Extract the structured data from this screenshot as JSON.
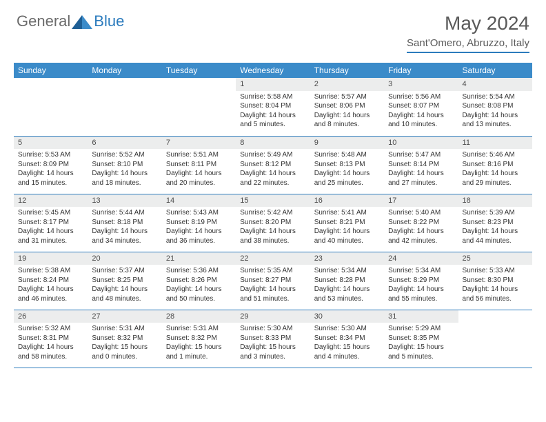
{
  "brand": {
    "part1": "General",
    "part2": "Blue"
  },
  "title": "May 2024",
  "location": "Sant'Omero, Abruzzo, Italy",
  "colors": {
    "header_bg": "#3b8bc9",
    "header_text": "#ffffff",
    "daynum_bg": "#eceded",
    "row_border": "#2b7bbd",
    "logo_gray": "#6b6b6b",
    "logo_blue": "#2b7bbd",
    "title_color": "#5a5a5a"
  },
  "weekdays": [
    "Sunday",
    "Monday",
    "Tuesday",
    "Wednesday",
    "Thursday",
    "Friday",
    "Saturday"
  ],
  "weeks": [
    [
      {
        "n": "",
        "sr": "",
        "ss": "",
        "dl": ""
      },
      {
        "n": "",
        "sr": "",
        "ss": "",
        "dl": ""
      },
      {
        "n": "",
        "sr": "",
        "ss": "",
        "dl": ""
      },
      {
        "n": "1",
        "sr": "Sunrise: 5:58 AM",
        "ss": "Sunset: 8:04 PM",
        "dl": "Daylight: 14 hours and 5 minutes."
      },
      {
        "n": "2",
        "sr": "Sunrise: 5:57 AM",
        "ss": "Sunset: 8:06 PM",
        "dl": "Daylight: 14 hours and 8 minutes."
      },
      {
        "n": "3",
        "sr": "Sunrise: 5:56 AM",
        "ss": "Sunset: 8:07 PM",
        "dl": "Daylight: 14 hours and 10 minutes."
      },
      {
        "n": "4",
        "sr": "Sunrise: 5:54 AM",
        "ss": "Sunset: 8:08 PM",
        "dl": "Daylight: 14 hours and 13 minutes."
      }
    ],
    [
      {
        "n": "5",
        "sr": "Sunrise: 5:53 AM",
        "ss": "Sunset: 8:09 PM",
        "dl": "Daylight: 14 hours and 15 minutes."
      },
      {
        "n": "6",
        "sr": "Sunrise: 5:52 AM",
        "ss": "Sunset: 8:10 PM",
        "dl": "Daylight: 14 hours and 18 minutes."
      },
      {
        "n": "7",
        "sr": "Sunrise: 5:51 AM",
        "ss": "Sunset: 8:11 PM",
        "dl": "Daylight: 14 hours and 20 minutes."
      },
      {
        "n": "8",
        "sr": "Sunrise: 5:49 AM",
        "ss": "Sunset: 8:12 PM",
        "dl": "Daylight: 14 hours and 22 minutes."
      },
      {
        "n": "9",
        "sr": "Sunrise: 5:48 AM",
        "ss": "Sunset: 8:13 PM",
        "dl": "Daylight: 14 hours and 25 minutes."
      },
      {
        "n": "10",
        "sr": "Sunrise: 5:47 AM",
        "ss": "Sunset: 8:14 PM",
        "dl": "Daylight: 14 hours and 27 minutes."
      },
      {
        "n": "11",
        "sr": "Sunrise: 5:46 AM",
        "ss": "Sunset: 8:16 PM",
        "dl": "Daylight: 14 hours and 29 minutes."
      }
    ],
    [
      {
        "n": "12",
        "sr": "Sunrise: 5:45 AM",
        "ss": "Sunset: 8:17 PM",
        "dl": "Daylight: 14 hours and 31 minutes."
      },
      {
        "n": "13",
        "sr": "Sunrise: 5:44 AM",
        "ss": "Sunset: 8:18 PM",
        "dl": "Daylight: 14 hours and 34 minutes."
      },
      {
        "n": "14",
        "sr": "Sunrise: 5:43 AM",
        "ss": "Sunset: 8:19 PM",
        "dl": "Daylight: 14 hours and 36 minutes."
      },
      {
        "n": "15",
        "sr": "Sunrise: 5:42 AM",
        "ss": "Sunset: 8:20 PM",
        "dl": "Daylight: 14 hours and 38 minutes."
      },
      {
        "n": "16",
        "sr": "Sunrise: 5:41 AM",
        "ss": "Sunset: 8:21 PM",
        "dl": "Daylight: 14 hours and 40 minutes."
      },
      {
        "n": "17",
        "sr": "Sunrise: 5:40 AM",
        "ss": "Sunset: 8:22 PM",
        "dl": "Daylight: 14 hours and 42 minutes."
      },
      {
        "n": "18",
        "sr": "Sunrise: 5:39 AM",
        "ss": "Sunset: 8:23 PM",
        "dl": "Daylight: 14 hours and 44 minutes."
      }
    ],
    [
      {
        "n": "19",
        "sr": "Sunrise: 5:38 AM",
        "ss": "Sunset: 8:24 PM",
        "dl": "Daylight: 14 hours and 46 minutes."
      },
      {
        "n": "20",
        "sr": "Sunrise: 5:37 AM",
        "ss": "Sunset: 8:25 PM",
        "dl": "Daylight: 14 hours and 48 minutes."
      },
      {
        "n": "21",
        "sr": "Sunrise: 5:36 AM",
        "ss": "Sunset: 8:26 PM",
        "dl": "Daylight: 14 hours and 50 minutes."
      },
      {
        "n": "22",
        "sr": "Sunrise: 5:35 AM",
        "ss": "Sunset: 8:27 PM",
        "dl": "Daylight: 14 hours and 51 minutes."
      },
      {
        "n": "23",
        "sr": "Sunrise: 5:34 AM",
        "ss": "Sunset: 8:28 PM",
        "dl": "Daylight: 14 hours and 53 minutes."
      },
      {
        "n": "24",
        "sr": "Sunrise: 5:34 AM",
        "ss": "Sunset: 8:29 PM",
        "dl": "Daylight: 14 hours and 55 minutes."
      },
      {
        "n": "25",
        "sr": "Sunrise: 5:33 AM",
        "ss": "Sunset: 8:30 PM",
        "dl": "Daylight: 14 hours and 56 minutes."
      }
    ],
    [
      {
        "n": "26",
        "sr": "Sunrise: 5:32 AM",
        "ss": "Sunset: 8:31 PM",
        "dl": "Daylight: 14 hours and 58 minutes."
      },
      {
        "n": "27",
        "sr": "Sunrise: 5:31 AM",
        "ss": "Sunset: 8:32 PM",
        "dl": "Daylight: 15 hours and 0 minutes."
      },
      {
        "n": "28",
        "sr": "Sunrise: 5:31 AM",
        "ss": "Sunset: 8:32 PM",
        "dl": "Daylight: 15 hours and 1 minute."
      },
      {
        "n": "29",
        "sr": "Sunrise: 5:30 AM",
        "ss": "Sunset: 8:33 PM",
        "dl": "Daylight: 15 hours and 3 minutes."
      },
      {
        "n": "30",
        "sr": "Sunrise: 5:30 AM",
        "ss": "Sunset: 8:34 PM",
        "dl": "Daylight: 15 hours and 4 minutes."
      },
      {
        "n": "31",
        "sr": "Sunrise: 5:29 AM",
        "ss": "Sunset: 8:35 PM",
        "dl": "Daylight: 15 hours and 5 minutes."
      },
      {
        "n": "",
        "sr": "",
        "ss": "",
        "dl": ""
      }
    ]
  ]
}
